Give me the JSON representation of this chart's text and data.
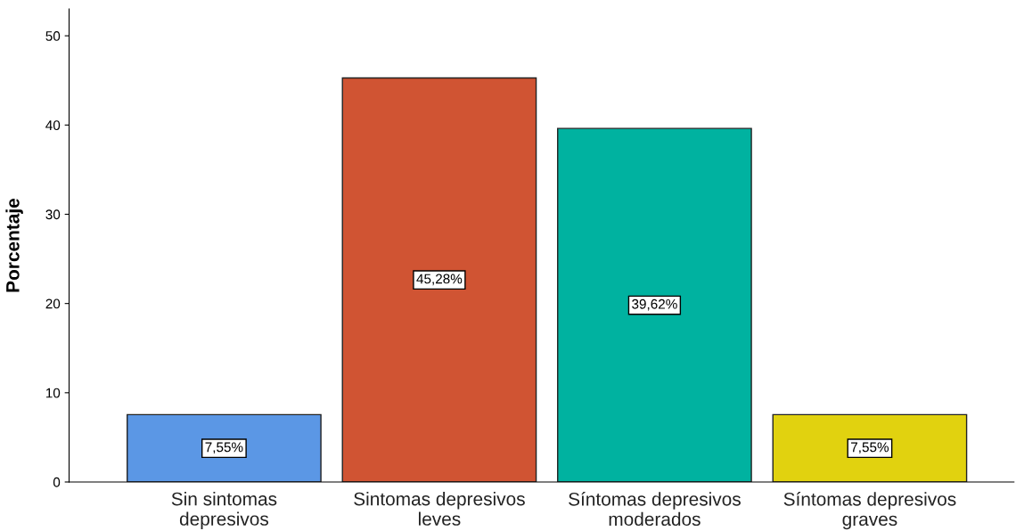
{
  "chart_data": {
    "type": "bar",
    "ylabel": "Porcentaje",
    "categories": [
      "Sin sintomas\ndepresivos",
      "Sintomas depresivos\nleves",
      "Síntomas depresivos\nmoderados",
      "Síntomas depresivos\ngraves"
    ],
    "values": [
      7.55,
      45.28,
      39.62,
      7.55
    ],
    "colors": [
      "#5b97e5",
      "#d05433",
      "#00b2a0",
      "#e1d20f"
    ],
    "value_labels": [
      "7,55%",
      "45,28%",
      "39,62%",
      "7,55%"
    ],
    "ylim": [
      0,
      53
    ],
    "yticks": [
      0,
      10,
      20,
      30,
      40,
      50
    ],
    "grid": false,
    "legend": false
  }
}
